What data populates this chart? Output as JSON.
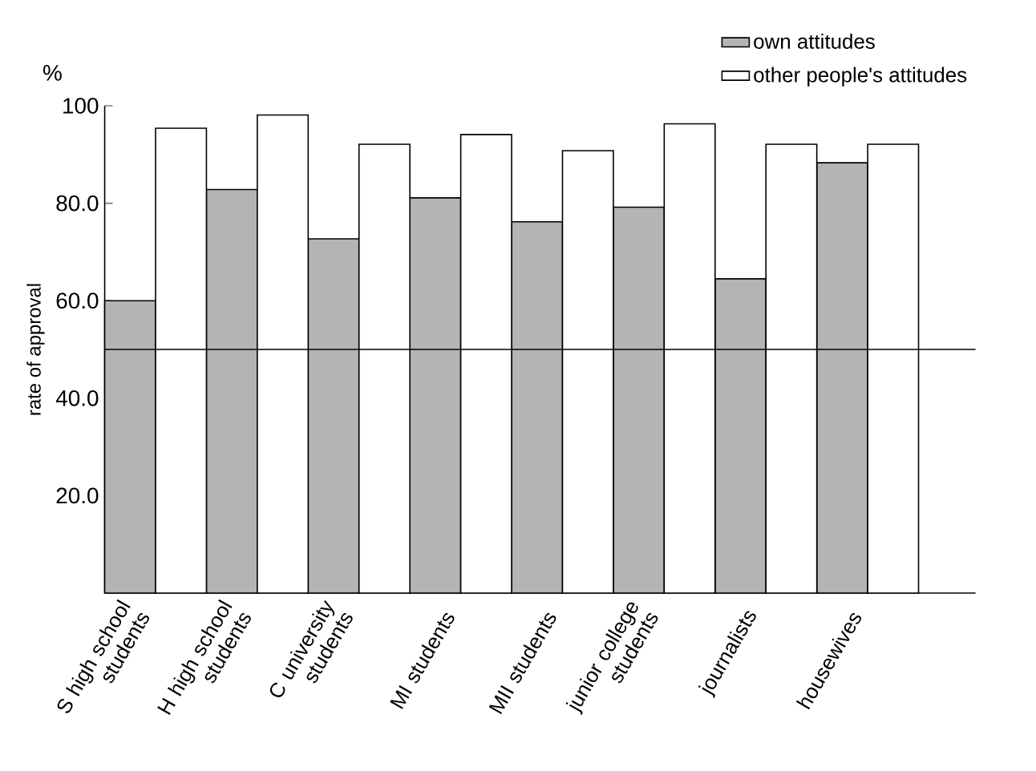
{
  "chart_data": {
    "type": "bar",
    "ylabel": "rate of approval",
    "annotations": [
      "%"
    ],
    "categories": [
      "S high school students",
      "H high school students",
      "C university students",
      "MI students",
      "MII students",
      "junior college students",
      "journalists",
      "housewives"
    ],
    "series": [
      {
        "name": "own attitudes",
        "color": "#b4b4b4",
        "values": [
          60,
          82.8,
          72.7,
          81.1,
          76.2,
          79.2,
          64.5,
          88.3
        ]
      },
      {
        "name": "other people's attitudes",
        "color": "#ffffff",
        "values": [
          95.4,
          98.1,
          92.1,
          94.1,
          90.8,
          96.3,
          92.1,
          92.1
        ]
      }
    ],
    "ylim": [
      0,
      100
    ],
    "yticks": [
      {
        "value": 20,
        "label": "20.0"
      },
      {
        "value": 40,
        "label": "40.0"
      },
      {
        "value": 60,
        "label": "60.0"
      },
      {
        "value": 80,
        "label": "80.0"
      },
      100
    ],
    "ref_lines": [
      {
        "axis": "y",
        "value": 50
      }
    ],
    "legend": "top right",
    "grid": false
  }
}
